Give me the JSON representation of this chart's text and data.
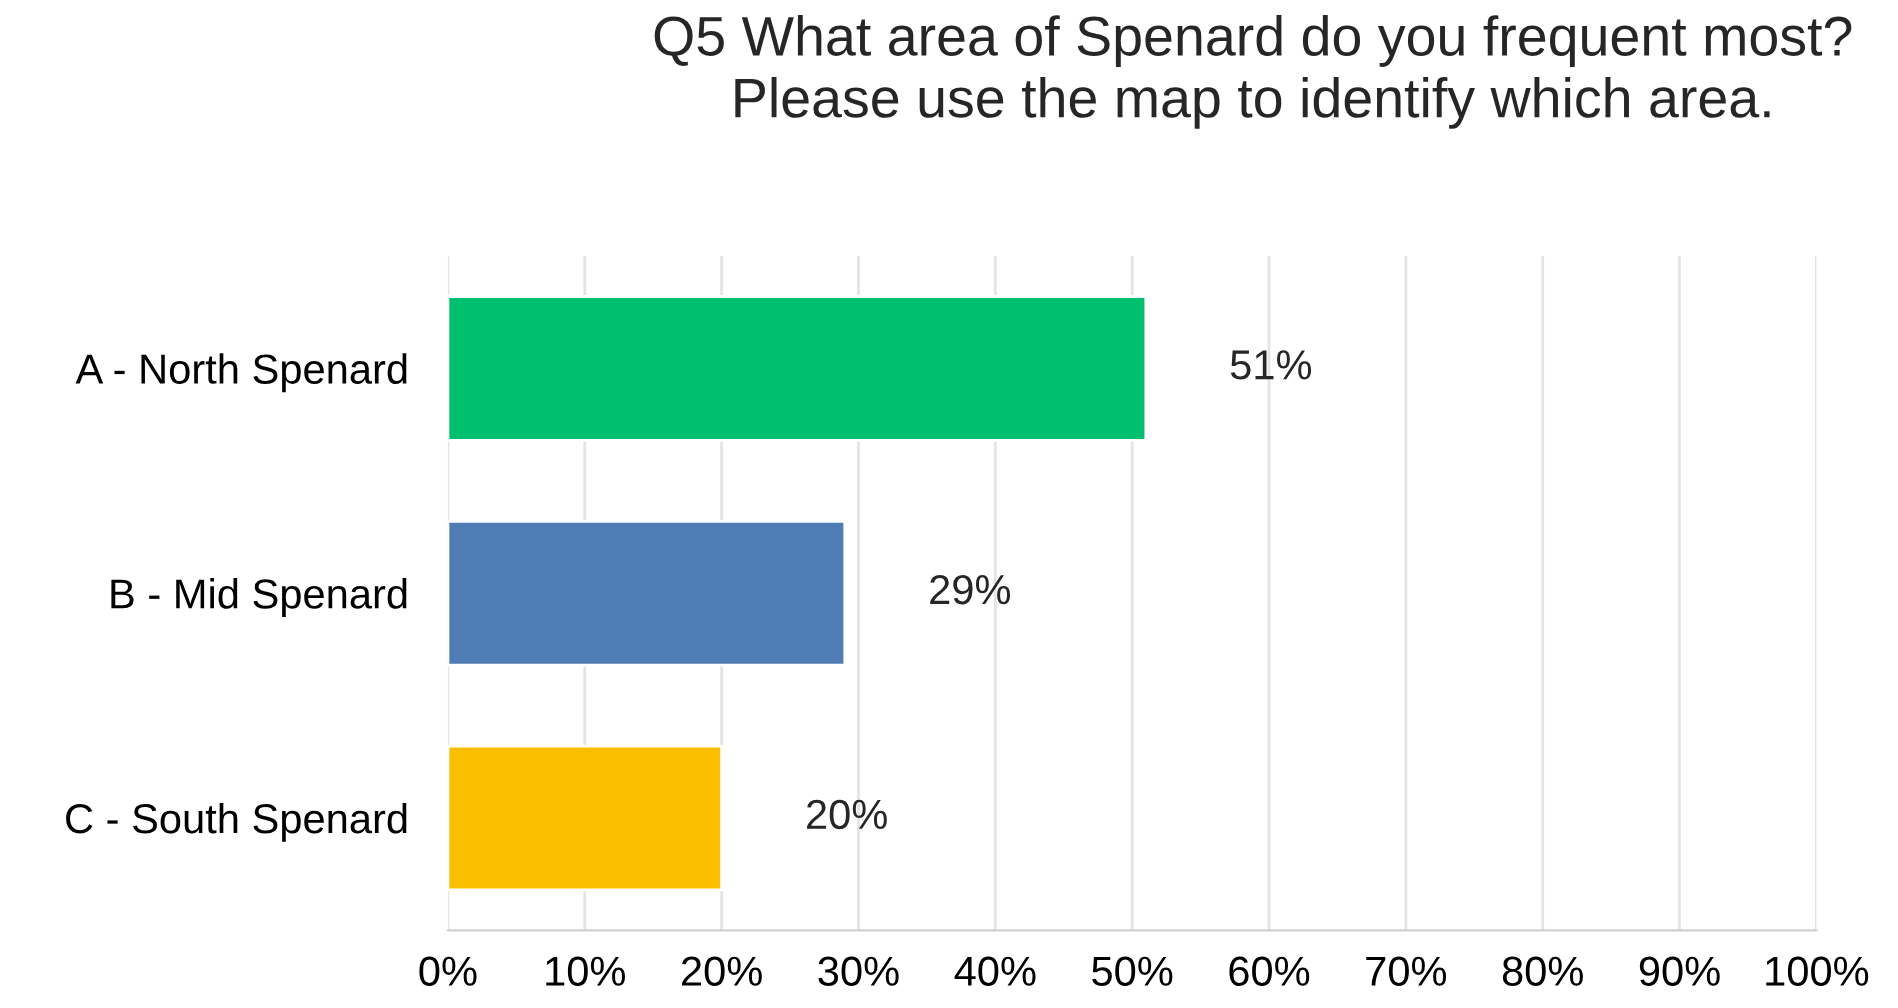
{
  "chart_data": {
    "type": "bar",
    "orientation": "horizontal",
    "title": "Q5 What area of Spenard do you frequent most?\nPlease use the map to identify which area.",
    "categories": [
      "A - North Spenard",
      "B - Mid Spenard",
      "C - South Spenard"
    ],
    "values": [
      51,
      29,
      20
    ],
    "colors": [
      "#00bf6f",
      "#507cb6",
      "#f9be00"
    ],
    "value_labels": [
      "51%",
      "29%",
      "20%"
    ],
    "xlim": [
      0,
      100
    ],
    "xticks": [
      {
        "value": 0,
        "label": "0%"
      },
      {
        "value": 10,
        "label": "10%"
      },
      {
        "value": 20,
        "label": "20%"
      },
      {
        "value": 30,
        "label": "30%"
      },
      {
        "value": 40,
        "label": "40%"
      },
      {
        "value": 50,
        "label": "50%"
      },
      {
        "value": 60,
        "label": "60%"
      },
      {
        "value": 70,
        "label": "70%"
      },
      {
        "value": 80,
        "label": "80%"
      },
      {
        "value": 90,
        "label": "90%"
      },
      {
        "value": 100,
        "label": "100%"
      }
    ],
    "grid": "x",
    "legend": false
  }
}
